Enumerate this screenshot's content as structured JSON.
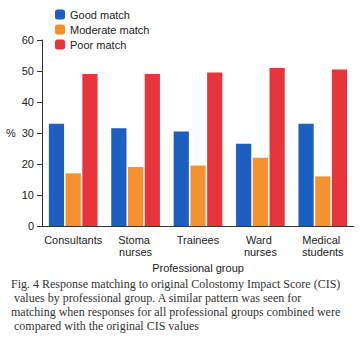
{
  "chart_data": {
    "type": "bar",
    "title": "Fig. 4 Response matching to original Colostomy Impact Score (CIS) values by professional group. A similar pattern was seen for matching when responses for all professional groups combined were compared with the original CIS values",
    "x_label": "Professional group",
    "y_label": "%",
    "categories": [
      "Consultants",
      "Stoma nurses",
      "Trainees",
      "Ward nurses",
      "Medical students"
    ],
    "series": [
      {
        "name": "Good match",
        "color": "#1c5fc0",
        "values": [
          33,
          31.5,
          30.5,
          26.5,
          33
        ]
      },
      {
        "name": "Moderate match",
        "color": "#f5922f",
        "values": [
          17,
          19,
          19.5,
          22,
          16
        ]
      },
      {
        "name": "Poor match",
        "color": "#e8353b",
        "values": [
          49,
          49,
          49.5,
          51,
          50.5
        ]
      }
    ],
    "ylim": [
      0,
      60
    ],
    "yticks": [
      0,
      10,
      20,
      30,
      40,
      50,
      60
    ],
    "grid": false,
    "legend": "upper left"
  }
}
